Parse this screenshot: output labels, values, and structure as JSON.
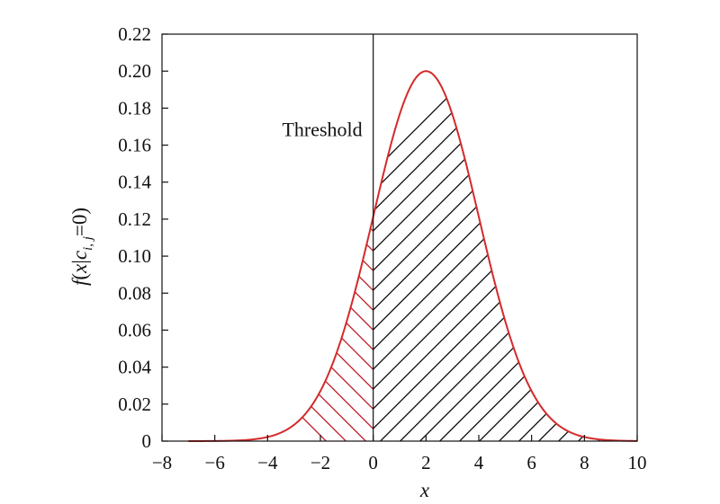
{
  "chart_data": {
    "type": "area",
    "title": "",
    "xlabel": "x",
    "ylabel": {
      "text_parts": [
        "f",
        "(",
        "x",
        "|",
        "c",
        "i, j",
        "=0)"
      ]
    },
    "xlim": [
      -8,
      10
    ],
    "ylim": [
      0,
      0.22
    ],
    "x_ticks": [
      -8,
      -6,
      -4,
      -2,
      0,
      2,
      4,
      6,
      8,
      10
    ],
    "x_tick_labels": [
      "−8",
      "−6",
      "−4",
      "−2",
      "0",
      "2",
      "4",
      "6",
      "8",
      "10"
    ],
    "y_ticks": [
      0,
      0.02,
      0.04,
      0.06,
      0.08,
      0.1,
      0.12,
      0.14,
      0.16,
      0.18,
      0.2,
      0.22
    ],
    "y_tick_labels": [
      "0",
      "0.02",
      "0.04",
      "0.06",
      "0.08",
      "0.10",
      "0.12",
      "0.14",
      "0.16",
      "0.18",
      "0.20",
      "0.22"
    ],
    "grid": false,
    "series": [
      {
        "curve": "gaussian",
        "mean": 2,
        "std": 2,
        "x_range": [
          -7,
          10
        ],
        "peak": 0.2,
        "color": "#d42a2a"
      }
    ],
    "threshold": {
      "x": 0,
      "label": "Threshold",
      "color": "#111111"
    },
    "regions": [
      {
        "x_range": [
          -7,
          0
        ],
        "hatch": "diagonal-down",
        "color": "#c0202a"
      },
      {
        "x_range": [
          0,
          10
        ],
        "hatch": "diagonal-up",
        "color": "#111111"
      }
    ]
  }
}
